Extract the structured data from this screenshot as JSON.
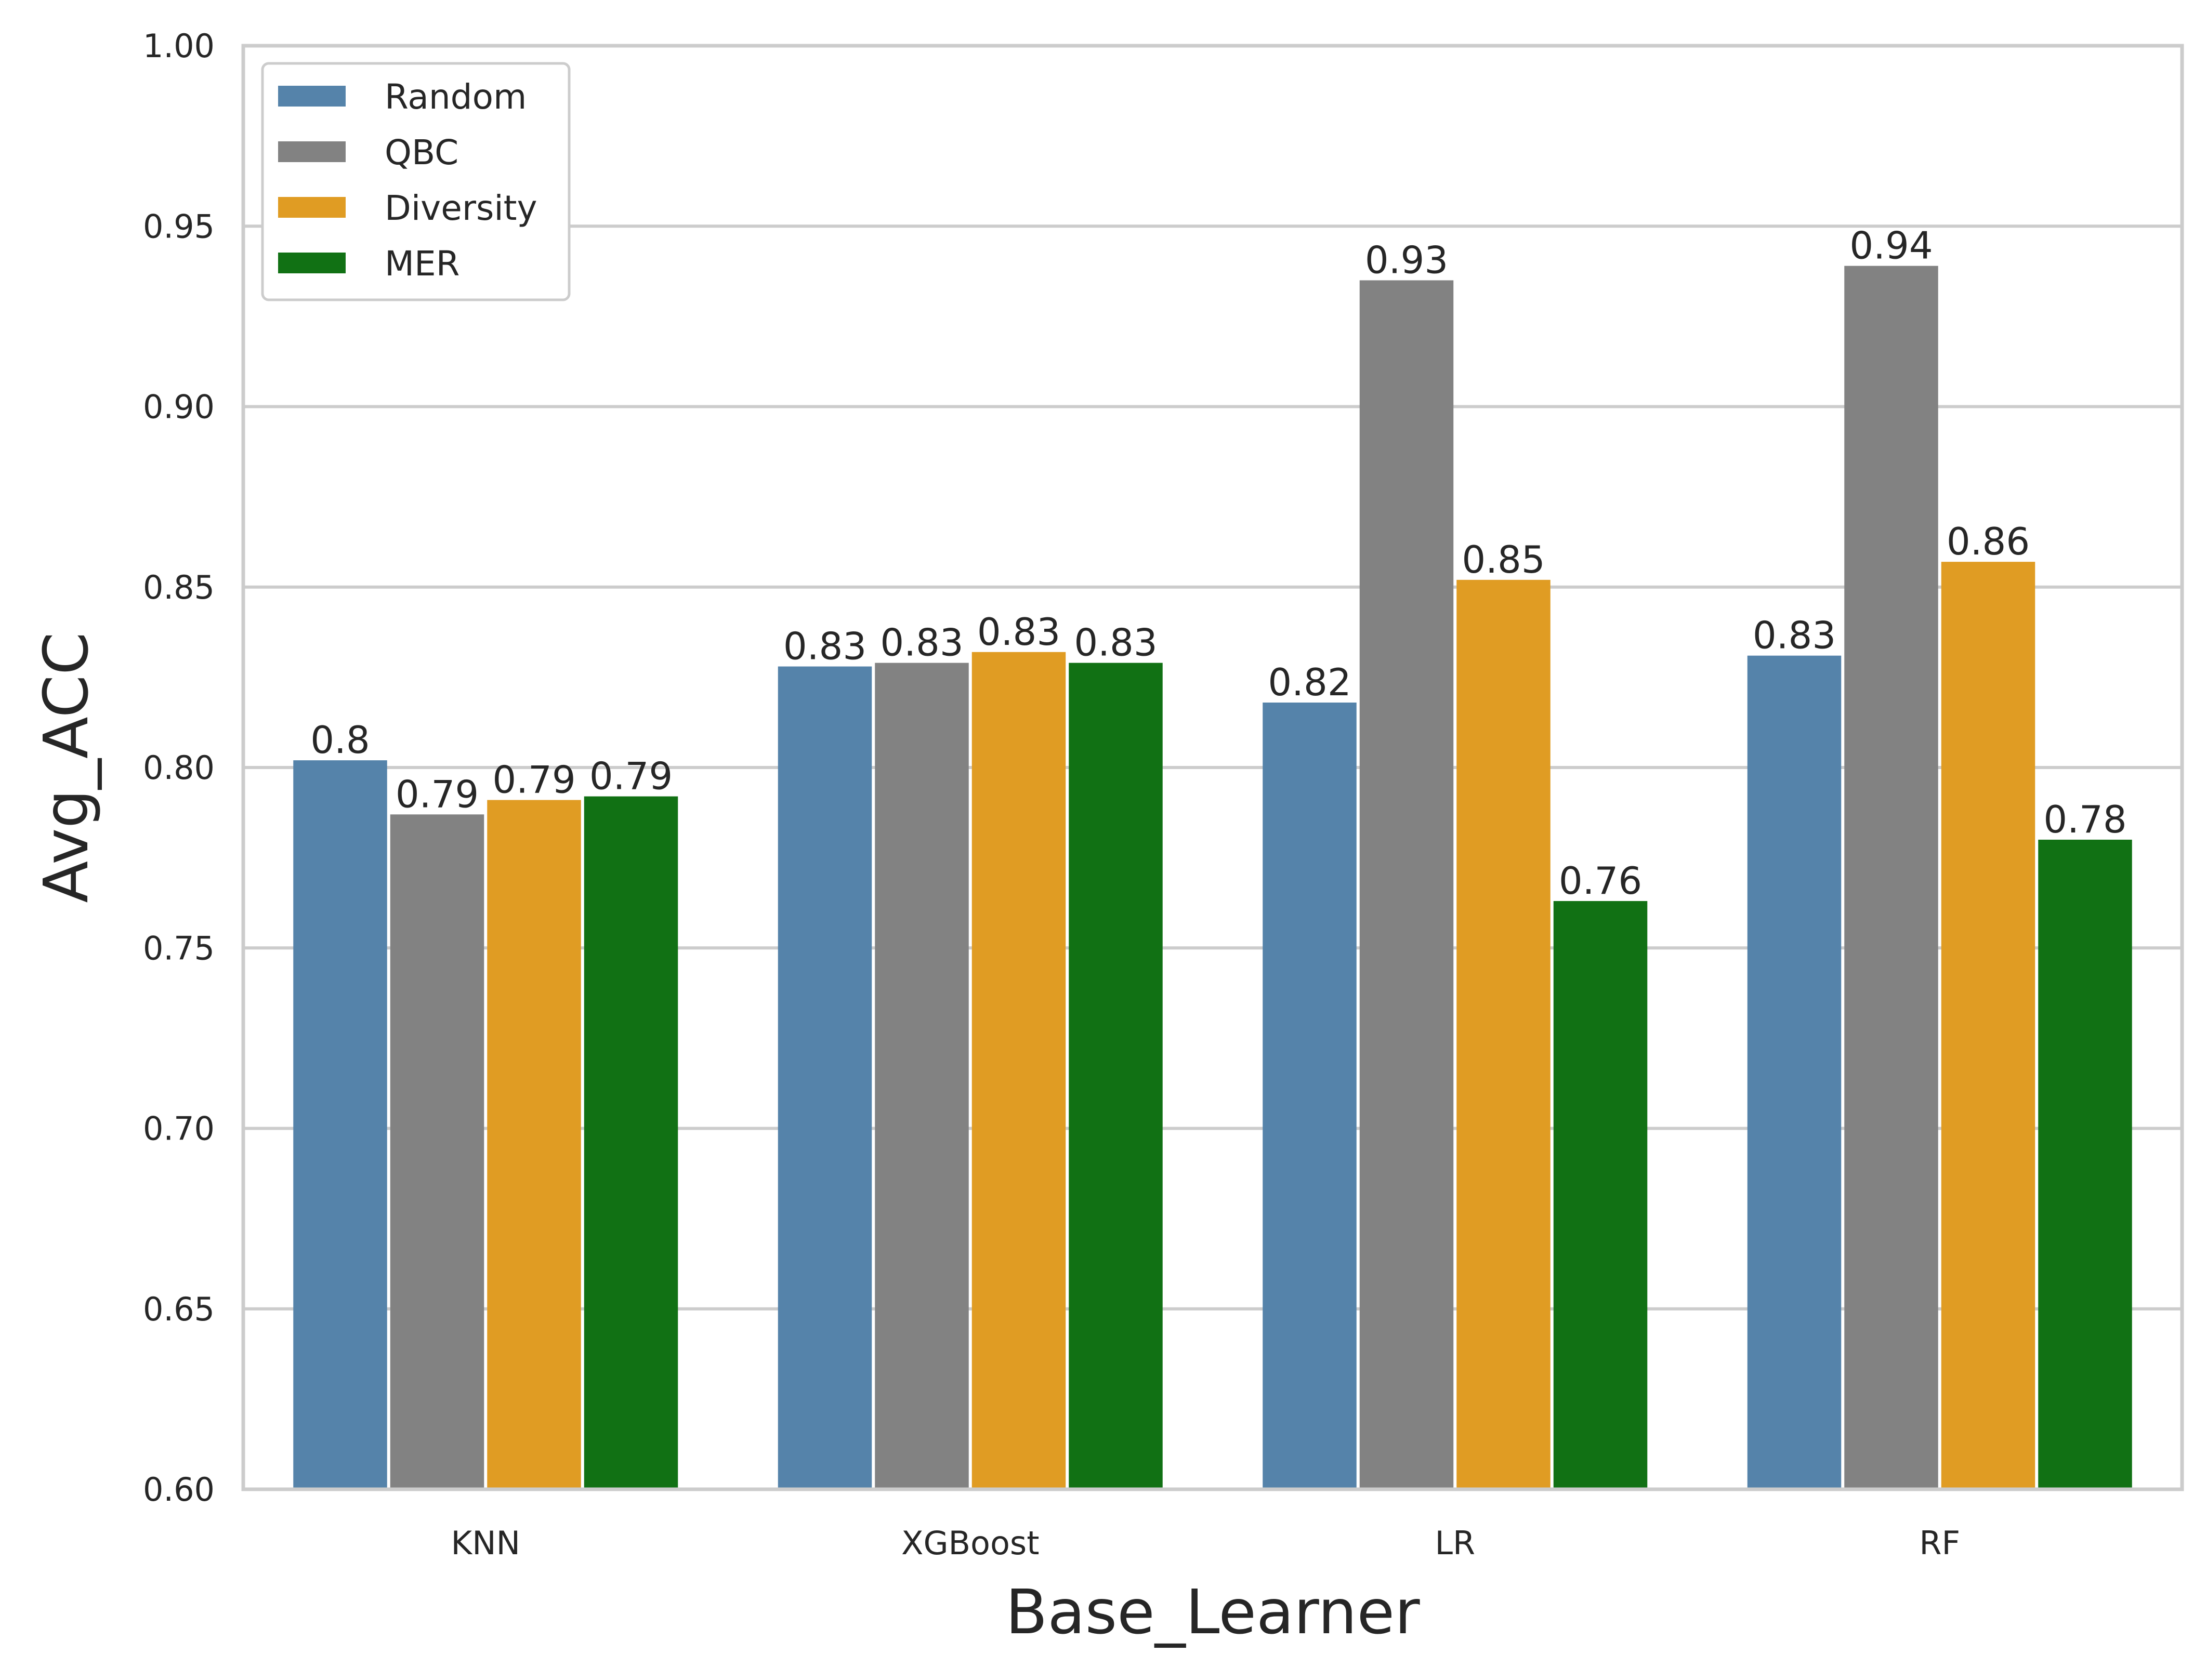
{
  "chart_data": {
    "type": "bar",
    "xlabel": "Base_Learner",
    "ylabel": "Avg_ACC",
    "ylim": [
      0.6,
      1.0
    ],
    "yticks": [
      "0.60",
      "0.65",
      "0.70",
      "0.75",
      "0.80",
      "0.85",
      "0.90",
      "0.95",
      "1.00"
    ],
    "categories": [
      "KNN",
      "XGBoost",
      "LR",
      "RF"
    ],
    "grid": "horizontal",
    "legend_position": "top-left",
    "series": [
      {
        "name": "Random",
        "color": "#5583aa",
        "values": [
          0.802,
          0.828,
          0.818,
          0.831
        ],
        "labels": [
          "0.8",
          "0.83",
          "0.82",
          "0.83"
        ]
      },
      {
        "name": "QBC",
        "color": "#828282",
        "values": [
          0.787,
          0.829,
          0.935,
          0.939
        ],
        "labels": [
          "0.79",
          "0.83",
          "0.93",
          "0.94"
        ]
      },
      {
        "name": "Diversity",
        "color": "#e09c23",
        "values": [
          0.791,
          0.832,
          0.852,
          0.857
        ],
        "labels": [
          "0.79",
          "0.83",
          "0.85",
          "0.86"
        ]
      },
      {
        "name": "MER",
        "color": "#117114",
        "values": [
          0.792,
          0.829,
          0.763,
          0.78
        ],
        "labels": [
          "0.79",
          "0.83",
          "0.76",
          "0.78"
        ]
      }
    ]
  }
}
